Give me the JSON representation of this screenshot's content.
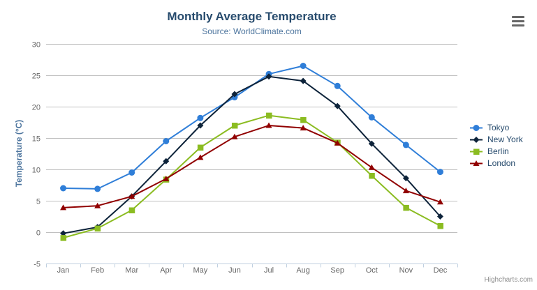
{
  "chart_data": {
    "type": "line",
    "title": "Monthly Average Temperature",
    "subtitle": "Source: WorldClimate.com",
    "categories": [
      "Jan",
      "Feb",
      "Mar",
      "Apr",
      "May",
      "Jun",
      "Jul",
      "Aug",
      "Sep",
      "Oct",
      "Nov",
      "Dec"
    ],
    "series": [
      {
        "name": "Tokyo",
        "color": "#2f7ed8",
        "marker": "circle",
        "values": [
          7.0,
          6.9,
          9.5,
          14.5,
          18.2,
          21.5,
          25.2,
          26.5,
          23.3,
          18.3,
          13.9,
          9.6
        ]
      },
      {
        "name": "New York",
        "color": "#0d233a",
        "marker": "diamond",
        "values": [
          -0.2,
          0.8,
          5.7,
          11.3,
          17.0,
          22.0,
          24.8,
          24.1,
          20.1,
          14.1,
          8.6,
          2.5
        ]
      },
      {
        "name": "Berlin",
        "color": "#8bbc21",
        "marker": "square",
        "values": [
          -0.9,
          0.6,
          3.5,
          8.4,
          13.5,
          17.0,
          18.6,
          17.9,
          14.3,
          9.0,
          3.9,
          1.0
        ]
      },
      {
        "name": "London",
        "color": "#910000",
        "marker": "triangle",
        "values": [
          3.9,
          4.2,
          5.7,
          8.5,
          11.9,
          15.2,
          17.0,
          16.6,
          14.2,
          10.3,
          6.6,
          4.8
        ]
      }
    ],
    "xlabel": "",
    "ylabel": "Temperature (°C)",
    "ylim": [
      -5,
      30
    ],
    "ytick_step": 5,
    "grid": true,
    "legend_position": "right"
  },
  "colors": {
    "title": "#274b6d",
    "subtitle": "#4d759e",
    "axis_title": "#4d759e",
    "tick_label": "#666666",
    "gridline": "#c0c0c0",
    "axis_line": "#c0d0e0",
    "legend_text": "#274b6d",
    "credits": "#909090",
    "menu_icon": "#666666",
    "background": "#ffffff"
  },
  "export_menu": {
    "icon": "hamburger-icon"
  },
  "credits": {
    "label": "Highcharts.com"
  }
}
